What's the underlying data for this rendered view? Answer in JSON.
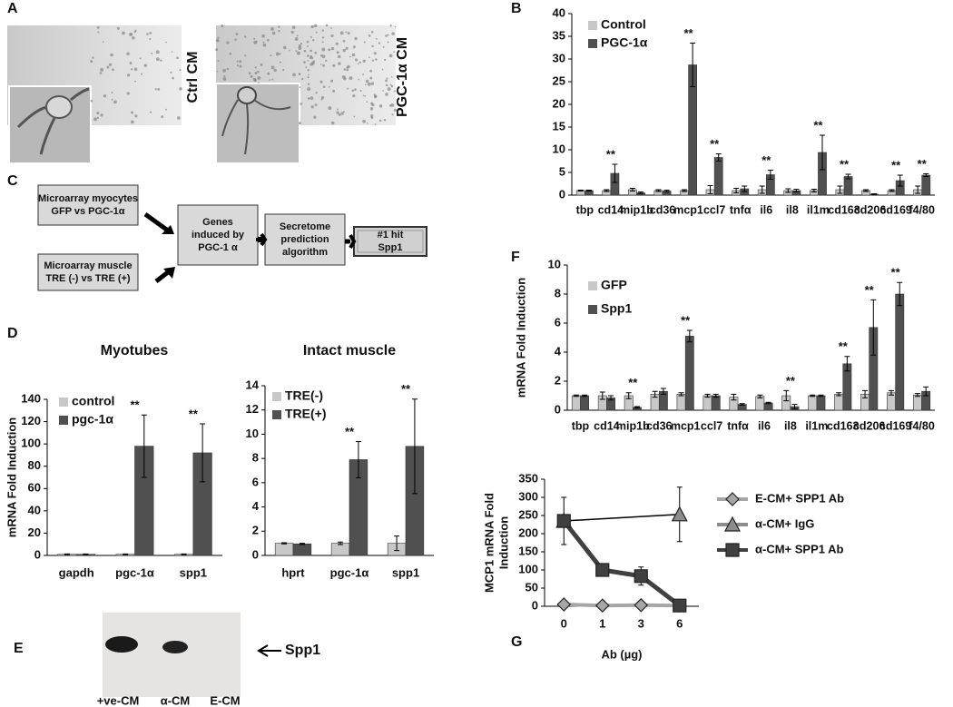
{
  "panel_labels": [
    "A",
    "B",
    "C",
    "D",
    "E",
    "F",
    "G"
  ],
  "panel_a": {
    "labels": [
      "Ctrl CM",
      "PGC-1α CM"
    ]
  },
  "panel_c": {
    "nodes": [
      {
        "lines": [
          "Microarray myocytes",
          "GFP vs PGC-1α"
        ]
      },
      {
        "lines": [
          "Microarray muscle",
          "TRE (-) vs TRE (+)"
        ]
      },
      {
        "lines": [
          "Genes",
          "induced by",
          "PGC-1 α"
        ]
      },
      {
        "lines": [
          "Secretome",
          "prediction",
          "algorithm"
        ]
      },
      {
        "lines": [
          "#1 hit",
          "Spp1"
        ]
      }
    ]
  },
  "panel_e": {
    "lanes": [
      "+ve-CM",
      "α-CM",
      "E-CM"
    ],
    "band_label": "Spp1"
  },
  "chart_data": [
    {
      "type": "bar",
      "categories": [
        "tbp",
        "cd14",
        "mip1b",
        "cd36",
        "mcp1",
        "ccl7",
        "tnfα",
        "il6",
        "il8",
        "il1m",
        "cd163",
        "cd206",
        "cd169",
        "f4/80"
      ],
      "series": [
        {
          "name": "Control",
          "color": "#c8c8c8",
          "values": [
            1,
            1,
            1.2,
            1,
            1,
            1.2,
            1,
            1.2,
            1,
            1,
            1.2,
            1,
            1,
            1.2
          ],
          "errors": [
            0.1,
            0.2,
            0.3,
            0.2,
            0.2,
            0.9,
            0.5,
            0.8,
            0.4,
            0.3,
            0.8,
            0.2,
            0.2,
            0.8
          ]
        },
        {
          "name": "PGC-1α",
          "color": "#505050",
          "values": [
            1,
            4.8,
            0.5,
            0.9,
            28.7,
            8.3,
            1.4,
            4.5,
            1,
            9.4,
            4.1,
            0.2,
            3.2,
            4.4
          ],
          "errors": [
            0.1,
            2,
            0.2,
            0.2,
            4.8,
            0.8,
            0.6,
            1,
            0.3,
            3.8,
            0.5,
            0.1,
            1.2,
            0.3
          ]
        }
      ],
      "significance": [
        null,
        "**",
        null,
        null,
        "**",
        "**",
        null,
        "**",
        null,
        "**",
        "**",
        null,
        "**",
        "**"
      ],
      "ylim": [
        0,
        40
      ],
      "yticks": [
        0,
        5,
        10,
        15,
        20,
        25,
        30,
        35,
        40
      ]
    },
    {
      "type": "bar",
      "title": "Myotubes",
      "ylabel": [
        "mRNA Fold Induction"
      ],
      "categories": [
        "gapdh",
        "pgc-1α",
        "spp1"
      ],
      "series": [
        {
          "name": "control",
          "color": "#c8c8c8",
          "values": [
            1,
            1,
            1
          ],
          "errors": [
            0.3,
            0.3,
            0.3
          ]
        },
        {
          "name": "pgc-1α",
          "color": "#505050",
          "values": [
            1,
            98,
            92
          ],
          "errors": [
            0.3,
            28,
            26
          ]
        }
      ],
      "significance": [
        null,
        "**",
        "**"
      ],
      "ylim": [
        0,
        140
      ],
      "yticks": [
        0,
        20,
        40,
        60,
        80,
        100,
        120,
        140
      ]
    },
    {
      "type": "bar",
      "title": "Intact muscle",
      "categories": [
        "hprt",
        "pgc-1α",
        "spp1"
      ],
      "series": [
        {
          "name": "TRE(-)",
          "color": "#c8c8c8",
          "values": [
            1,
            1,
            1
          ],
          "errors": [
            0.05,
            0.1,
            0.6
          ]
        },
        {
          "name": "TRE(+)",
          "color": "#505050",
          "values": [
            0.95,
            7.9,
            9
          ],
          "errors": [
            0.05,
            1.5,
            3.9
          ]
        }
      ],
      "significance": [
        null,
        "**",
        "**"
      ],
      "ylim": [
        0,
        14
      ],
      "yticks": [
        0,
        2,
        4,
        6,
        8,
        10,
        12,
        14
      ]
    },
    {
      "type": "bar",
      "ylabel": [
        "mRNA Fold Induction"
      ],
      "categories": [
        "tbp",
        "cd14",
        "mip1b",
        "cd36",
        "mcp1",
        "ccl7",
        "tnfα",
        "il6",
        "il8",
        "il1m",
        "cd163",
        "cd206",
        "cd169",
        "f4/80"
      ],
      "series": [
        {
          "name": "GFP",
          "color": "#c8c8c8",
          "values": [
            1,
            1,
            1,
            1.1,
            1.1,
            1,
            0.9,
            0.95,
            1,
            1,
            1.1,
            1.1,
            1.2,
            1.05
          ],
          "errors": [
            0.05,
            0.25,
            0.2,
            0.2,
            0.1,
            0.1,
            0.2,
            0.1,
            0.35,
            0.05,
            0.1,
            0.25,
            0.15,
            0.1
          ]
        },
        {
          "name": "Spp1",
          "color": "#505050",
          "values": [
            1,
            0.85,
            0.2,
            1.3,
            5.1,
            1,
            0.4,
            0.5,
            0.25,
            1,
            3.2,
            5.7,
            8,
            1.3
          ],
          "errors": [
            0.05,
            0.15,
            0.05,
            0.2,
            0.4,
            0.1,
            0.05,
            0.05,
            0.15,
            0.05,
            0.5,
            1.9,
            0.8,
            0.3
          ]
        }
      ],
      "significance": [
        null,
        null,
        "**",
        null,
        "**",
        null,
        null,
        null,
        "**",
        null,
        "**",
        "**",
        "**",
        null
      ],
      "ylim": [
        0,
        10
      ],
      "yticks": [
        0,
        2,
        4,
        6,
        8,
        10
      ]
    },
    {
      "type": "line",
      "ylabel": [
        "MCP1 mRNA Fold",
        "Induction"
      ],
      "xlabel": "Ab (µg)",
      "categories": [
        "0",
        "1",
        "3",
        "6"
      ],
      "series": [
        {
          "name": "E-CM+ SPP1 Ab",
          "color": "#a6a6a6",
          "marker": "diamond",
          "values": [
            5,
            2,
            3,
            2
          ],
          "errors": [
            2,
            1,
            1,
            1
          ]
        },
        {
          "name": "α-CM+ IgG",
          "color": "#8c8c8c",
          "marker": "triangle",
          "x": [
            "0",
            "6"
          ],
          "values": [
            235,
            253
          ],
          "errors": [
            null,
            75
          ]
        },
        {
          "name": "α-CM+ SPP1 Ab",
          "color": "#404040",
          "marker": "square",
          "values": [
            235,
            100,
            83,
            2
          ],
          "errors": [
            65,
            12,
            25,
            0
          ]
        }
      ],
      "ylim": [
        0,
        350
      ],
      "yticks": [
        0,
        50,
        100,
        150,
        200,
        250,
        300,
        350
      ]
    }
  ]
}
